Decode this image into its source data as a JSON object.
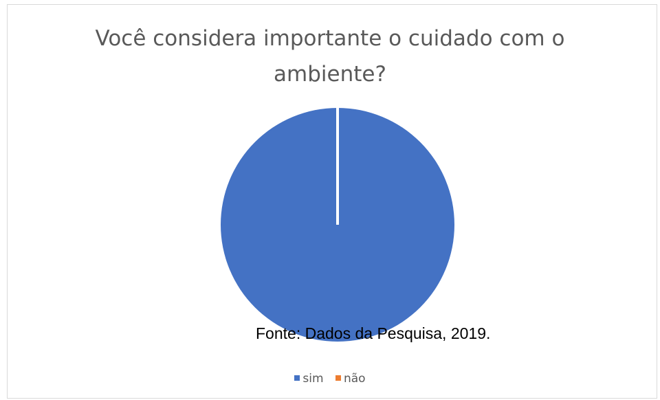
{
  "chart_data": {
    "type": "pie",
    "title_lines": [
      "Você considera importante o cuidado com o",
      "ambiente?"
    ],
    "categories": [
      "sim",
      "não"
    ],
    "values": [
      100,
      0
    ],
    "colors": [
      "#4472c4",
      "#ed7d31"
    ],
    "legend_position": "bottom"
  },
  "source_note": "Fonte: Dados da Pesquisa, 2019."
}
